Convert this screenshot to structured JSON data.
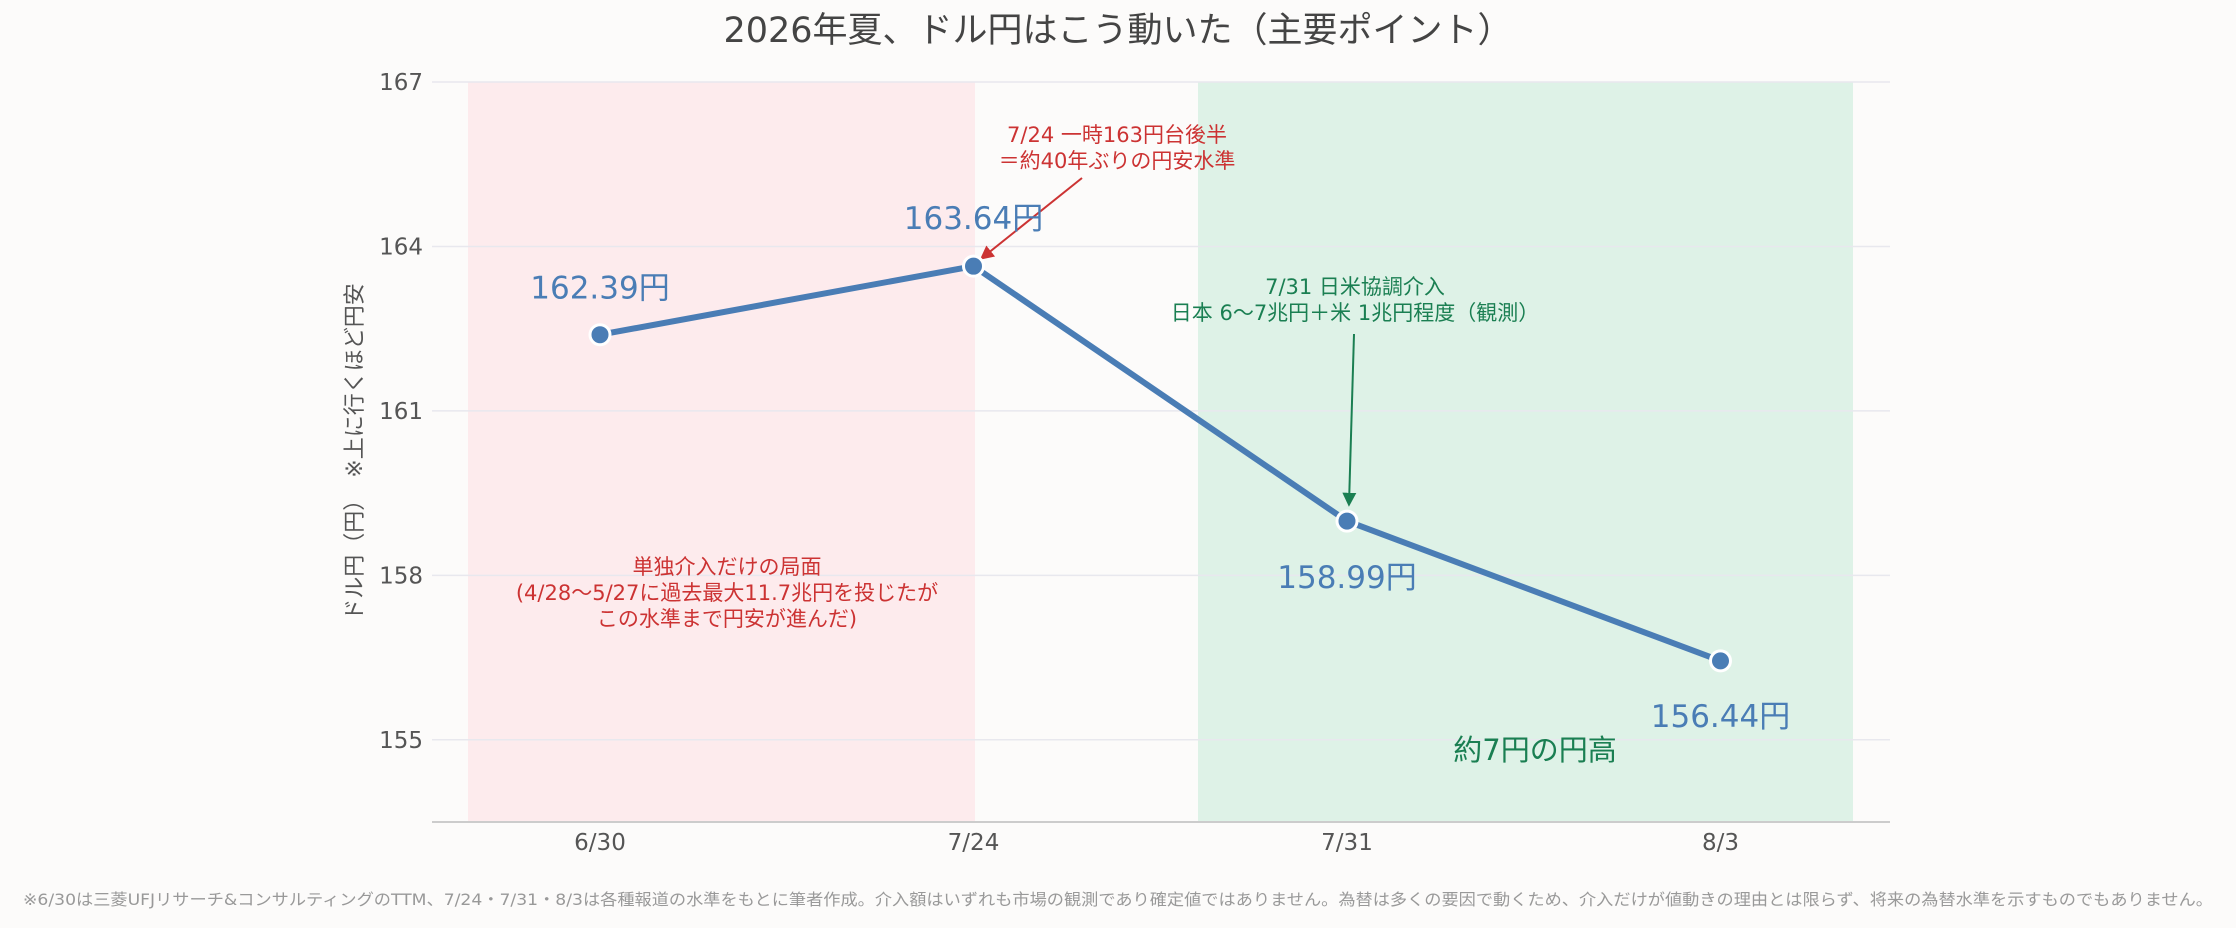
{
  "colors": {
    "background": "#fcfbfa",
    "line": "#4a7db5",
    "grid": "#e8e8ee",
    "axis_text": "#555555",
    "title_text": "#444444",
    "red_zone_fill": "#fdebed",
    "green_zone_fill": "#def2e7",
    "red_annotation": "#cc3333",
    "green_annotation": "#1a7f52",
    "footnote_text": "#999999"
  },
  "chart_data": {
    "type": "line",
    "title": "2026年夏、ドル円はこう動いた（主要ポイント）",
    "ylabel": "ドル円（円）　※上に行くほど円安",
    "xlabel": "",
    "categories": [
      "6/30",
      "7/24",
      "7/31",
      "8/3"
    ],
    "series": [
      {
        "values": [
          162.39,
          163.64,
          158.99,
          156.44
        ]
      }
    ],
    "data_labels": [
      "162.39円",
      "163.64円",
      "158.99円",
      "156.44円"
    ],
    "ylim": [
      153.5,
      167
    ],
    "yticks": [
      155,
      158,
      161,
      164,
      167
    ],
    "grid": true,
    "shaded_regions": [
      {
        "from": 0,
        "to": 1,
        "color": "red",
        "label": [
          "単独介入だけの局面",
          "(4/28〜5/27に過去最大11.7兆円を投じたが",
          "この水準まで円安が進んだ)"
        ]
      },
      {
        "from": 2,
        "to": 3,
        "color": "green",
        "label": [
          "約7円の円高"
        ]
      }
    ],
    "annotations": [
      {
        "point_index": 1,
        "color": "red",
        "lines": [
          "7/24 一時163円台後半",
          "＝約40年ぶりの円安水準"
        ]
      },
      {
        "point_index": 2,
        "color": "green",
        "lines": [
          "7/31 日米協調介入",
          "日本 6〜7兆円＋米 1兆円程度（観測）"
        ]
      }
    ]
  },
  "footnote": "※6/30は三菱UFJリサーチ&コンサルティングのTTM、7/24・7/31・8/3は各種報道の水準をもとに筆者作成。介入額はいずれも市場の観測であり確定値ではありません。為替は多くの要因で動くため、介入だけが値動きの理由とは限らず、将来の為替水準を示すものでもありません。"
}
